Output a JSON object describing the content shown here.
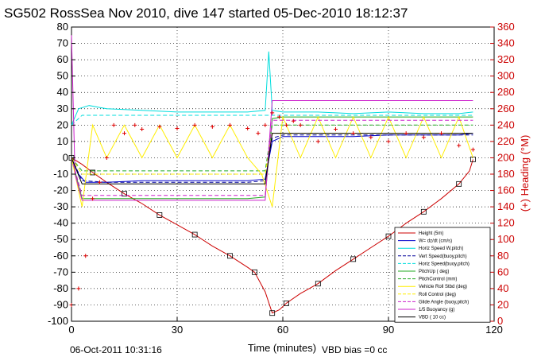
{
  "chart_data": {
    "type": "line",
    "title": "SG502 RossSea Nov 2010, dive 147 started 05-Dec-2010 18:12:37",
    "xlabel": "Time (minutes)",
    "ylabel_right": "(+) Heading (°M)",
    "xlim": [
      0,
      120
    ],
    "ylim": [
      -100,
      80
    ],
    "ylim_right": [
      0,
      360
    ],
    "xticks": [
      "0",
      "30",
      "60",
      "90",
      "120"
    ],
    "yticks": [
      "80",
      "70",
      "60",
      "50",
      "40",
      "30",
      "20",
      "10",
      "0",
      "-10",
      "-20",
      "-30",
      "-40",
      "-50",
      "-60",
      "-70",
      "-80",
      "-90",
      "-100"
    ],
    "yticks_right": [
      "360",
      "340",
      "320",
      "300",
      "280",
      "260",
      "240",
      "220",
      "200",
      "180",
      "160",
      "140",
      "120",
      "100",
      "80",
      "60",
      "40",
      "20",
      "0"
    ],
    "grid": true,
    "legend_position": "lower-right",
    "colors": {
      "depth": "#cc0000",
      "w": "#0000cc",
      "horz_speed": "#00dddd",
      "vert_speed_buoy": "#000099",
      "pitch": "#22aa22",
      "roll": "#ffee00",
      "buoyancy": "#cc22cc",
      "heading": "#dd0000",
      "vbd": "#000000"
    },
    "series": [
      {
        "name": "Height (5m)",
        "key": "depth",
        "x": [
          0,
          3,
          6,
          10,
          15,
          20,
          25,
          30,
          35,
          40,
          45,
          50,
          52,
          55,
          57,
          59,
          61,
          65,
          70,
          75,
          80,
          85,
          90,
          95,
          100,
          105,
          110,
          113,
          114
        ],
        "y": [
          0,
          -4,
          -9,
          -15,
          -22,
          -28,
          -35,
          -41,
          -47,
          -54,
          -60,
          -67,
          -70,
          -82,
          -95,
          -93,
          -89,
          -83,
          -77,
          -69,
          -62,
          -55,
          -48,
          -40,
          -33,
          -25,
          -16,
          -8,
          -1
        ],
        "style": "solid"
      },
      {
        "name": "W= dz/dt (cm/s)",
        "key": "w",
        "x": [
          0,
          2,
          4,
          10,
          20,
          30,
          40,
          50,
          55,
          57,
          60,
          70,
          80,
          90,
          100,
          110,
          114
        ],
        "y": [
          0,
          -10,
          -15,
          -15,
          -14,
          -14,
          -14,
          -14,
          -13,
          10,
          13,
          13,
          13,
          14,
          14,
          14,
          15
        ],
        "style": "solid"
      },
      {
        "name": "Horiz Speed W,pitch)",
        "key": "horz_speed",
        "x": [
          0,
          2,
          5,
          10,
          20,
          30,
          40,
          50,
          55,
          56,
          57,
          60,
          70,
          80,
          90,
          100,
          110,
          114
        ],
        "y": [
          20,
          30,
          32,
          30,
          29,
          28,
          28,
          28,
          29,
          65,
          29,
          28,
          28,
          27,
          28,
          27,
          27,
          28
        ],
        "style": "solid"
      },
      {
        "name": "Vert Speed(buoy,pitch)",
        "key": "vert_speed_buoy",
        "x": [
          0,
          3,
          10,
          20,
          30,
          40,
          50,
          55,
          57,
          60,
          70,
          80,
          90,
          100,
          110,
          114
        ],
        "y": [
          0,
          -14,
          -15,
          -15,
          -15,
          -15,
          -15,
          -14,
          12,
          14,
          14,
          14,
          14,
          14,
          14,
          14
        ],
        "style": "dashed"
      },
      {
        "name": "Horiz Speed(buoy,pitch)",
        "key": "horz_speed",
        "x": [
          0,
          3,
          10,
          20,
          30,
          40,
          50,
          55,
          57,
          60,
          70,
          80,
          90,
          100,
          110,
          114
        ],
        "y": [
          20,
          26,
          26,
          26,
          26,
          26,
          26,
          26,
          26,
          26,
          26,
          26,
          26,
          26,
          26,
          26
        ],
        "style": "dashed"
      },
      {
        "name": "PitchUp ( deg)",
        "key": "pitch",
        "x": [
          0,
          3,
          10,
          20,
          30,
          40,
          50,
          55,
          57,
          60,
          70,
          80,
          90,
          100,
          110,
          114
        ],
        "y": [
          0,
          -25,
          -25,
          -25,
          -25,
          -25,
          -25,
          -24,
          24,
          25,
          25,
          25,
          25,
          25,
          25,
          25
        ],
        "style": "solid"
      },
      {
        "name": "PitchControl (mm)",
        "key": "pitch",
        "x": [
          0,
          3,
          10,
          20,
          30,
          40,
          50,
          55,
          57,
          60,
          70,
          80,
          90,
          100,
          110,
          114
        ],
        "y": [
          0,
          -8,
          -8,
          -8,
          -8,
          -8,
          -8,
          -8,
          20,
          20,
          20,
          20,
          20,
          20,
          20,
          20
        ],
        "style": "dashed"
      },
      {
        "name": "Vehicle Roll Stbd (deg)",
        "key": "roll",
        "x": [
          0,
          3,
          6,
          10,
          15,
          20,
          25,
          30,
          35,
          40,
          45,
          50,
          54,
          57,
          60,
          65,
          70,
          75,
          80,
          85,
          90,
          95,
          100,
          105,
          110,
          114
        ],
        "y": [
          0,
          -30,
          20,
          0,
          20,
          0,
          20,
          0,
          20,
          0,
          20,
          0,
          -10,
          -30,
          25,
          0,
          25,
          0,
          25,
          0,
          25,
          0,
          25,
          0,
          25,
          0
        ],
        "style": "solid"
      },
      {
        "name": "Roll Control (deg)",
        "key": "roll",
        "x": [
          0,
          3,
          10,
          20,
          30,
          40,
          50,
          55,
          57,
          60,
          70,
          80,
          90,
          100,
          110,
          114
        ],
        "y": [
          0,
          -10,
          -10,
          -10,
          -10,
          -10,
          -10,
          -10,
          15,
          15,
          15,
          15,
          15,
          15,
          15,
          15
        ],
        "style": "dashed"
      },
      {
        "name": "Glide Angle (buoy,pitch)",
        "key": "buoyancy",
        "x": [
          0,
          3,
          10,
          20,
          30,
          40,
          50,
          55,
          57,
          60,
          70,
          80,
          90,
          100,
          110,
          114
        ],
        "y": [
          0,
          -23,
          -23,
          -23,
          -23,
          -23,
          -23,
          -23,
          23,
          23,
          23,
          23,
          23,
          23,
          23,
          23
        ],
        "style": "dashed"
      },
      {
        "name": "1/5 Buoyancy (g)",
        "key": "buoyancy",
        "x": [
          0,
          1,
          3,
          10,
          20,
          30,
          40,
          50,
          55,
          57,
          60,
          70,
          80,
          90,
          100,
          110,
          114
        ],
        "y": [
          75,
          -10,
          -26,
          -26,
          -26,
          -26,
          -26,
          -26,
          -26,
          35,
          35,
          35,
          35,
          35,
          35,
          35,
          35
        ],
        "style": "solid"
      },
      {
        "name": "VBD ( 10 cc)",
        "key": "vbd",
        "x": [
          0,
          3,
          10,
          20,
          30,
          40,
          50,
          55,
          57,
          60,
          70,
          80,
          90,
          100,
          110,
          114
        ],
        "y": [
          0,
          -16,
          -16,
          -16,
          -16,
          -16,
          -16,
          -16,
          15,
          15,
          15,
          15,
          15,
          15,
          15,
          15
        ],
        "style": "solid"
      }
    ],
    "heading_series": {
      "x": [
        0,
        2,
        4,
        6,
        8,
        10,
        12,
        15,
        18,
        20,
        25,
        30,
        35,
        40,
        45,
        50,
        53,
        55,
        57,
        59,
        61,
        63,
        65,
        70,
        75,
        80,
        85,
        90,
        95,
        100,
        105,
        110,
        114
      ],
      "y": [
        20,
        40,
        80,
        150,
        170,
        200,
        240,
        230,
        240,
        235,
        238,
        236,
        240,
        238,
        240,
        236,
        230,
        240,
        255,
        250,
        240,
        245,
        240,
        220,
        235,
        230,
        225,
        220,
        230,
        225,
        230,
        215,
        210
      ],
      "marker": "+",
      "color": "#dd0000"
    },
    "legend": [
      "Height (5m)",
      "W= dz/dt (cm/s)",
      "Horiz Speed W,pitch)",
      "Vert Speed(buoy,pitch)",
      "Horiz Speed(buoy,pitch)",
      "PitchUp ( deg)",
      "PitchControl (mm)",
      "Vehicle Roll Stbd (deg)",
      "Roll Control (deg)",
      "Glide Angle (buoy,pitch)",
      "1/5 Buoyancy (g)",
      "VBD ( 10 cc)"
    ],
    "footer_left": "06-Oct-2011 10:31:16",
    "footer_right": "VBD bias =0 cc"
  }
}
